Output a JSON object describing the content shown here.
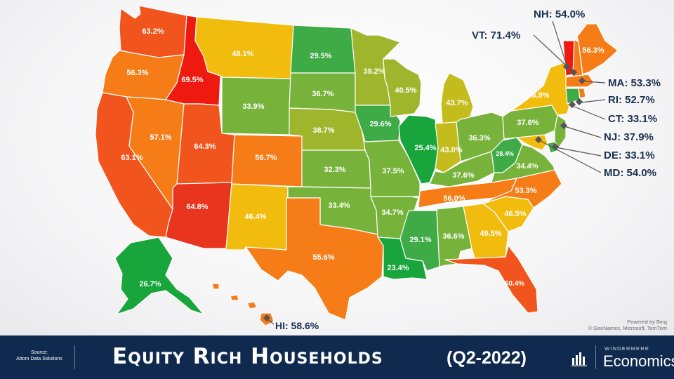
{
  "colors": {
    "v20": "#18a53b",
    "v30": "#3eab46",
    "v35": "#77b33b",
    "v40": "#9fb52b",
    "v43": "#c4bb1c",
    "v46": "#f2bc0e",
    "v50": "#f8a31b",
    "v55": "#f57c17",
    "v60": "#f2541d",
    "v64": "#e9351d",
    "v70": "#ee1a10",
    "footer": "#0f2a4e",
    "callout_text": "#1b2f52"
  },
  "states": [
    {
      "id": "WA",
      "value": "63.2%"
    },
    {
      "id": "OR",
      "value": "56.3%"
    },
    {
      "id": "CA",
      "value": "63.1%"
    },
    {
      "id": "ID",
      "value": "69.5%"
    },
    {
      "id": "NV",
      "value": "57.1%"
    },
    {
      "id": "MT",
      "value": "48.1%"
    },
    {
      "id": "WY",
      "value": "33.9%"
    },
    {
      "id": "UT",
      "value": "64.3%"
    },
    {
      "id": "AZ",
      "value": "64.8%"
    },
    {
      "id": "CO",
      "value": "56.7%"
    },
    {
      "id": "NM",
      "value": "46.4%"
    },
    {
      "id": "ND",
      "value": "29.5%"
    },
    {
      "id": "SD",
      "value": "36.7%"
    },
    {
      "id": "NE",
      "value": "38.7%"
    },
    {
      "id": "KS",
      "value": "32.3%"
    },
    {
      "id": "OK",
      "value": "33.4%"
    },
    {
      "id": "TX",
      "value": "55.6%"
    },
    {
      "id": "MN",
      "value": "39.2%"
    },
    {
      "id": "IA",
      "value": "29.6%"
    },
    {
      "id": "MO",
      "value": "37.5%"
    },
    {
      "id": "AR",
      "value": "34.7%"
    },
    {
      "id": "LA",
      "value": "23.4%"
    },
    {
      "id": "WI",
      "value": "40.5%"
    },
    {
      "id": "IL",
      "value": "25.4%"
    },
    {
      "id": "MS",
      "value": "29.1%"
    },
    {
      "id": "MI",
      "value": "43.7%"
    },
    {
      "id": "IN",
      "value": "43.0%"
    },
    {
      "id": "KY",
      "value": "37.6%"
    },
    {
      "id": "TN",
      "value": "56.0%"
    },
    {
      "id": "AL",
      "value": "36.6%"
    },
    {
      "id": "OH",
      "value": "36.3%"
    },
    {
      "id": "WV",
      "value": "28.4%"
    },
    {
      "id": "GA",
      "value": "49.5%"
    },
    {
      "id": "FL",
      "value": "60.4%"
    },
    {
      "id": "SC",
      "value": "46.5%"
    },
    {
      "id": "NC",
      "value": "53.3%"
    },
    {
      "id": "VA",
      "value": "34.4%"
    },
    {
      "id": "PA",
      "value": "37.6%"
    },
    {
      "id": "NY",
      "value": "46.9%"
    },
    {
      "id": "ME",
      "value": "56.3%"
    },
    {
      "id": "AK",
      "value": "26.7%"
    }
  ],
  "callouts": {
    "NH": "NH: 54.0%",
    "VT": "VT: 71.4%",
    "MA": "MA: 53.3%",
    "RI": "RI: 52.7%",
    "CT": "CT: 33.1%",
    "NJ": "NJ: 37.9%",
    "DE": "DE: 33.1%",
    "MD": "MD: 54.0%",
    "HI": "HI: 58.6%"
  },
  "attribution": {
    "line1": "Powered by Bing",
    "line2": "© GeoNames, Microsoft, TomTom"
  },
  "footer": {
    "source_line1": "Source:",
    "source_line2": "Attom Data Solutions",
    "title": "Equity Rich Households",
    "subtitle": "(Q2-2022)",
    "brand_top": "WINDERMERE",
    "brand_bottom": "Economics"
  }
}
